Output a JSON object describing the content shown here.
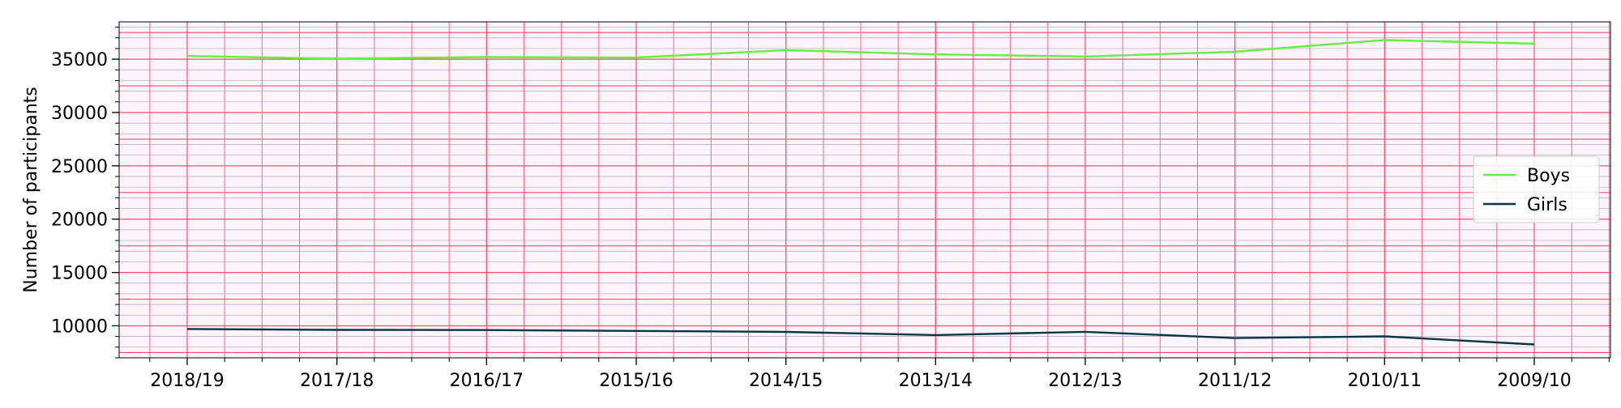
{
  "chart_data": {
    "type": "line",
    "title": "",
    "xlabel": "",
    "ylabel": "Number of participants",
    "categories": [
      "2018/19",
      "2017/18",
      "2016/17",
      "2015/16",
      "2014/15",
      "2013/14",
      "2012/13",
      "2011/12",
      "2010/11",
      "2009/10"
    ],
    "yticks": [
      10000,
      15000,
      20000,
      25000,
      30000,
      35000
    ],
    "ytick_labels": [
      "10000",
      "15000",
      "20000",
      "25000",
      "30000",
      "35000"
    ],
    "ylim": [
      7000,
      38500
    ],
    "grid": true,
    "grid_color": "#ff4d6d",
    "minor_grid_color": "#7f6fa0",
    "plot_background": "#fbf4fb",
    "legend_position": "center-right",
    "series": [
      {
        "name": "Boys",
        "color": "#66ee44",
        "values": [
          35300,
          35050,
          35200,
          35150,
          35850,
          35450,
          35250,
          35700,
          36800,
          36450
        ]
      },
      {
        "name": "Girls",
        "color": "#0b3540",
        "values": [
          9700,
          9620,
          9600,
          9520,
          9430,
          9130,
          9440,
          8850,
          9010,
          8250
        ]
      }
    ]
  }
}
